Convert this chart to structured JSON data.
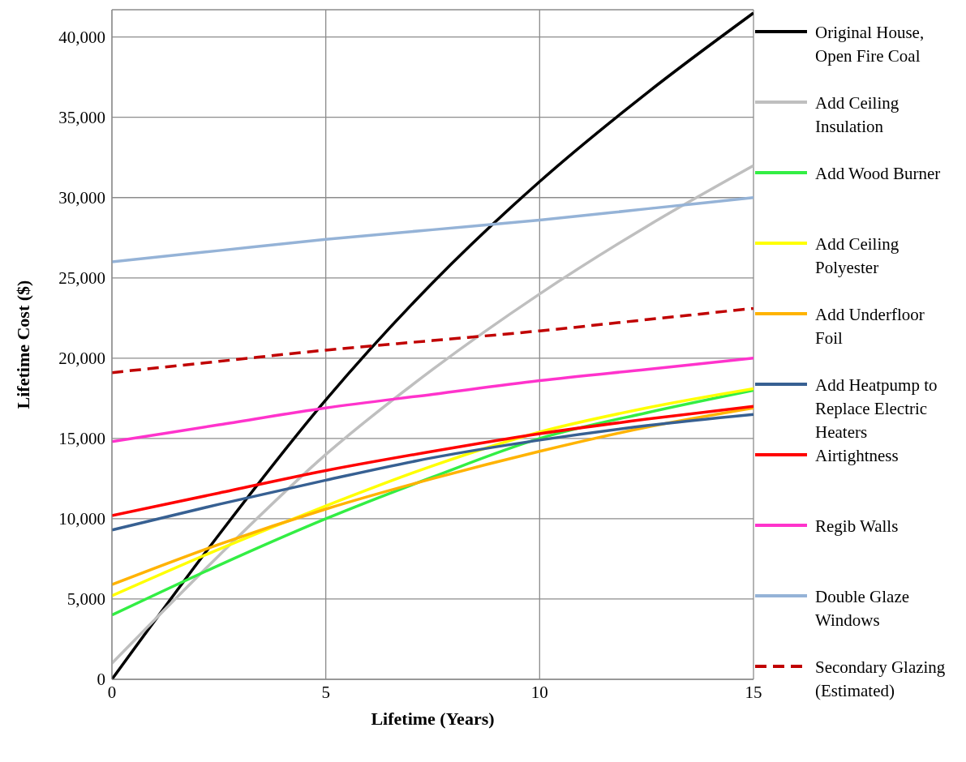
{
  "chart_data": {
    "type": "line",
    "xlabel": "Lifetime (Years)",
    "ylabel": "Lifetime Cost ($)",
    "x": [
      0,
      2.5,
      5,
      7.5,
      10,
      12.5,
      15
    ],
    "xlim": [
      0,
      15
    ],
    "xticks": [
      0,
      5,
      10,
      15
    ],
    "ylim": [
      0,
      41700
    ],
    "yticks": [
      {
        "value": 0,
        "label": "0"
      },
      {
        "value": 5000,
        "label": "5,000"
      },
      {
        "value": 10000,
        "label": "10,000"
      },
      {
        "value": 15000,
        "label": "15,000"
      },
      {
        "value": 20000,
        "label": "20,000"
      },
      {
        "value": 25000,
        "label": "25,000"
      },
      {
        "value": 30000,
        "label": "30,000"
      },
      {
        "value": 35000,
        "label": "35,000"
      },
      {
        "value": 40000,
        "label": "40,000"
      }
    ],
    "grid": true,
    "legend": "right",
    "marker": "none",
    "line_style": "solid",
    "series": [
      {
        "name": "Original House, Open Fire Coal",
        "color": "#000000",
        "values": [
          0,
          9000,
          17400,
          24700,
          31000,
          36500,
          41500
        ]
      },
      {
        "name": "Add Ceiling Insulation",
        "color": "#bfbfbf",
        "values": [
          1000,
          7700,
          14000,
          19300,
          24000,
          28200,
          32000
        ]
      },
      {
        "name": "Add Wood Burner",
        "color": "#33ee44",
        "values": [
          4000,
          7100,
          10000,
          12600,
          15000,
          16600,
          18000
        ]
      },
      {
        "name": "Add Ceiling Polyester",
        "color": "#ffff00",
        "values": [
          5200,
          8100,
          10800,
          13300,
          15400,
          16900,
          18100
        ]
      },
      {
        "name": "Add Underfloor Foil",
        "color": "#ffb300",
        "values": [
          5900,
          8400,
          10600,
          12500,
          14200,
          15700,
          16900
        ]
      },
      {
        "name": "Add Heatpump to Replace Electric Heaters",
        "color": "#376092",
        "values": [
          9300,
          10900,
          12400,
          13800,
          14900,
          15800,
          16500
        ]
      },
      {
        "name": "Airtightness",
        "color": "#ff0000",
        "values": [
          10200,
          11600,
          13000,
          14200,
          15300,
          16200,
          17000
        ]
      },
      {
        "name": "Regib Walls",
        "color": "#ff33cc",
        "values": [
          14800,
          15850,
          16900,
          17750,
          18600,
          19300,
          20000
        ]
      },
      {
        "name": "Double Glaze Windows",
        "color": "#95b3d7",
        "values": [
          26000,
          26700,
          27400,
          28000,
          28600,
          29300,
          30000
        ]
      },
      {
        "name": "Secondary Glazing (Estimated)",
        "color": "#c00000",
        "line_style": "dashed",
        "values": [
          19100,
          19800,
          20500,
          21100,
          21700,
          22400,
          23100
        ]
      }
    ]
  }
}
